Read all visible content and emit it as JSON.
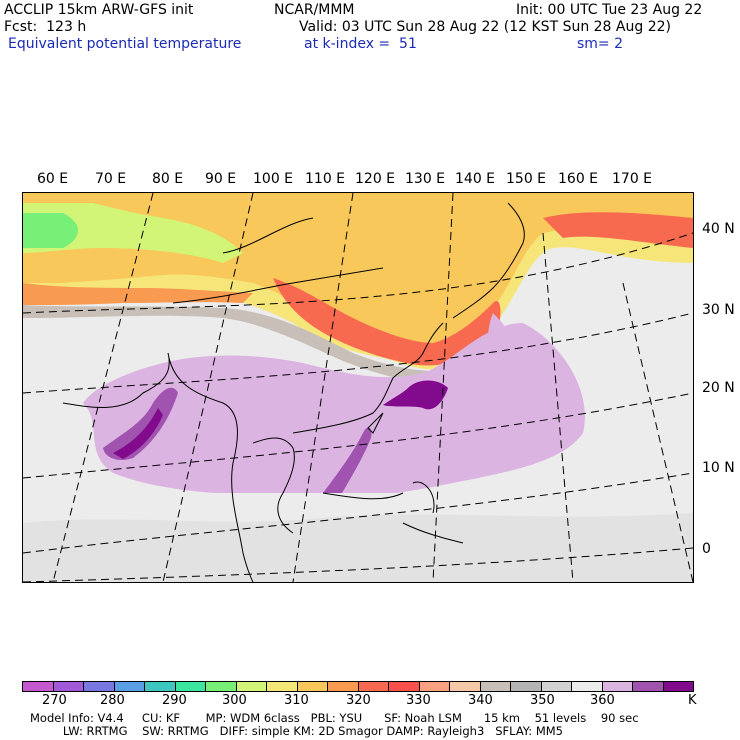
{
  "header": {
    "left1": "ACCLIP 15km ARW-GFS init",
    "left2": "Fcst:  123 h",
    "center1": "NCAR/MMM",
    "init": "Init: 00 UTC Tue 23 Aug 22",
    "valid": "Valid: 03 UTC Sun 28 Aug 22 (12 KST Sun 28 Aug 22)",
    "field": "Equivalent potential temperature",
    "level": "at k-index =  51",
    "smooth": "sm= 2"
  },
  "lon_labels": [
    "60 E",
    "70 E",
    "80 E",
    "90 E",
    "100 E",
    "110 E",
    "120 E",
    "130 E",
    "140 E",
    "150 E",
    "160 E",
    "170 E"
  ],
  "lat_labels": [
    "40 N",
    "30 N",
    "20 N",
    "10 N",
    "0"
  ],
  "colorbar": {
    "unit": "K",
    "ticks": [
      "270",
      "280",
      "290",
      "300",
      "310",
      "320",
      "330",
      "340",
      "350",
      "360"
    ],
    "colors": [
      "#c658d0",
      "#a25ad8",
      "#7878e0",
      "#5a9ee6",
      "#3cc8c0",
      "#3ce6a0",
      "#78f078",
      "#d2f578",
      "#f5e678",
      "#f8c85a",
      "#f89a50",
      "#f86a50",
      "#f8504a",
      "#f8a080",
      "#f5c8a8",
      "#c8c0b8",
      "#b4b4b4",
      "#d2d2d2",
      "#ececec",
      "#dcb4e2",
      "#a054b0",
      "#820a8c"
    ]
  },
  "footer": {
    "line1": "Model Info: V4.4     CU: KF       MP: WDM 6class   PBL: YSU      SF: Noah LSM      15 km    51 levels    90 sec",
    "line2": "         LW: RRTMG    SW: RRTMG   DIFF: simple KM: 2D Smagor DAMP: Rayleigh3   SFLAY: MM5"
  }
}
